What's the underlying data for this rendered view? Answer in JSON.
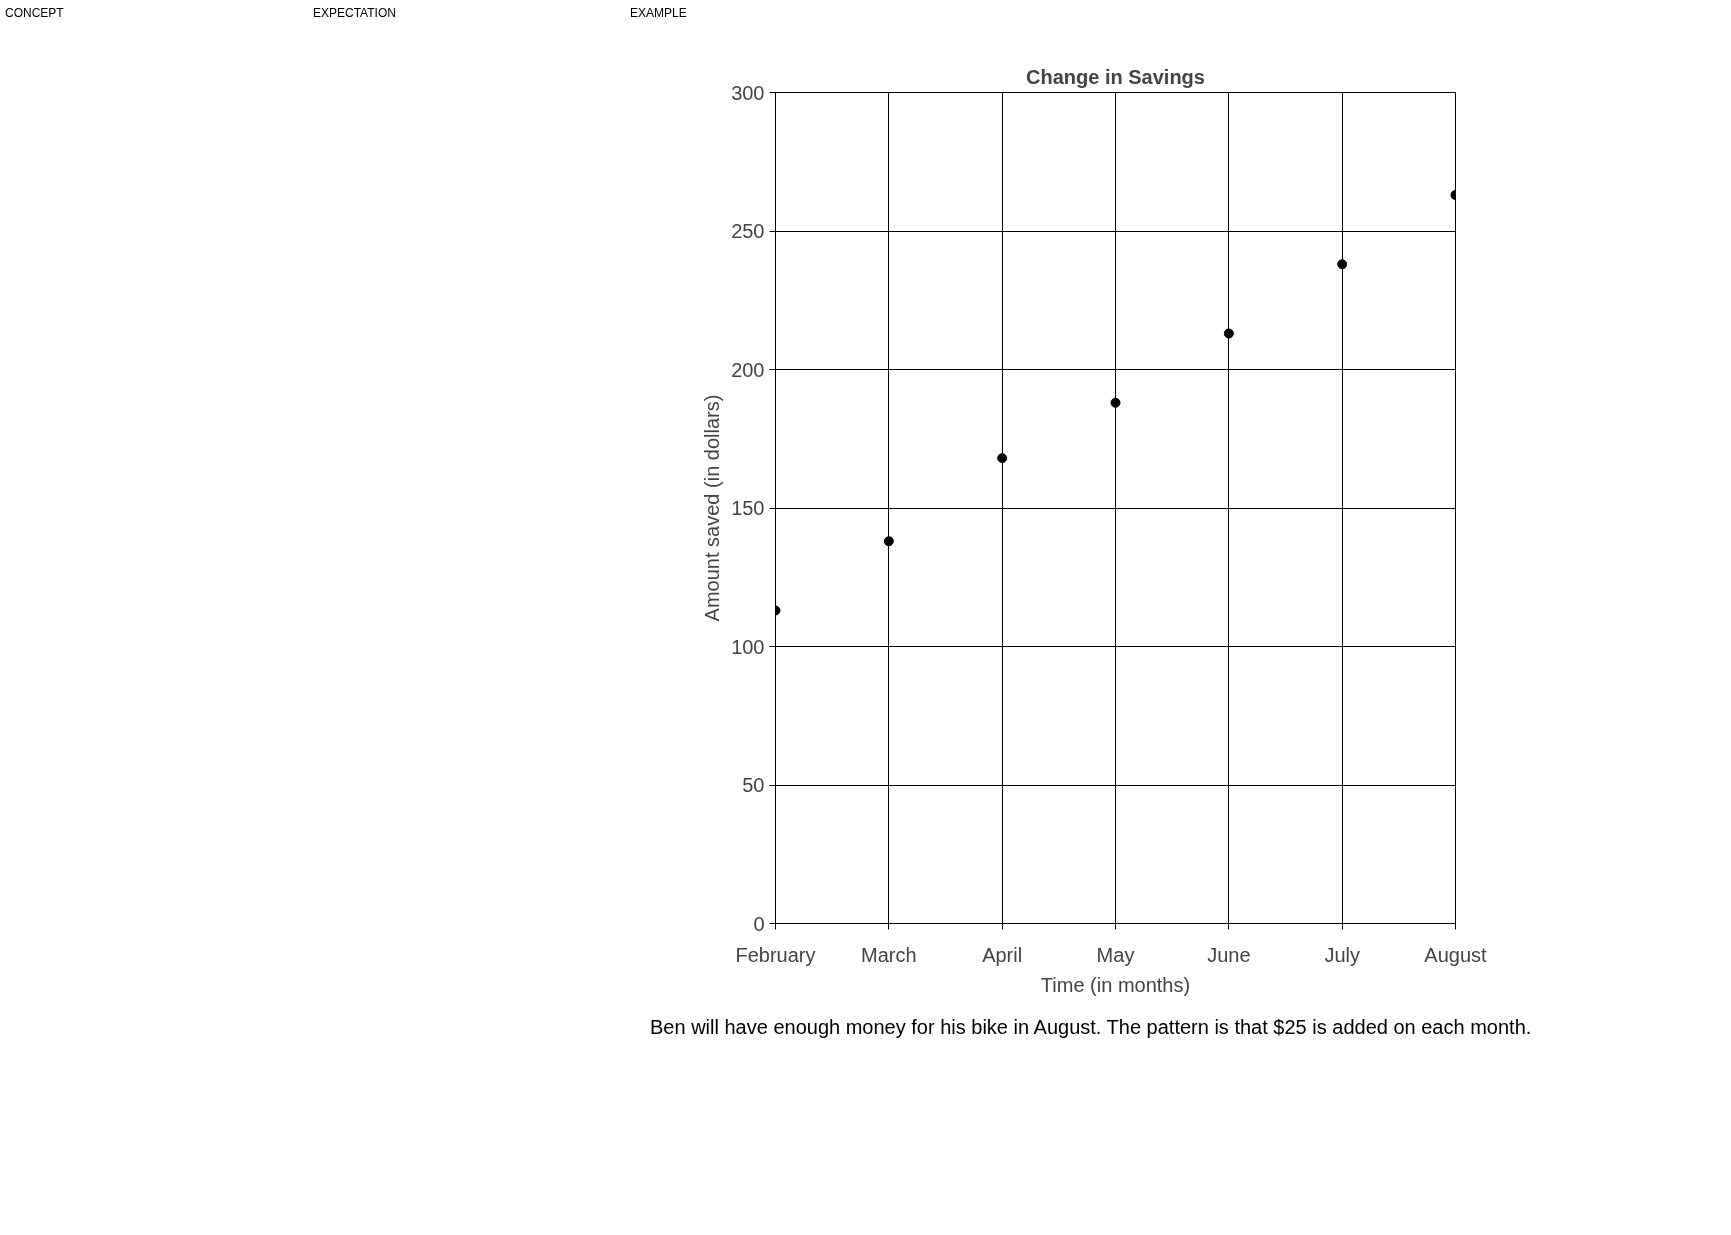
{
  "chart_data": {
    "type": "scatter",
    "title": "Change in Savings",
    "xlabel": "Time (in months)",
    "ylabel": "Amount saved (in dollars)",
    "categories": [
      "February",
      "March",
      "April",
      "May",
      "June",
      "July",
      "August"
    ],
    "values": [
      113,
      138,
      168,
      188,
      213,
      238,
      263
    ],
    "color": "#000000",
    "marker": "circle",
    "grid": true,
    "ylim": [
      0,
      300
    ],
    "yticks": [
      0,
      50,
      100,
      150,
      200,
      250,
      300
    ],
    "annotations": [
      "CONCEPT",
      "EXPECTATION",
      "EXAMPLE",
      "Ben will have enough money for his bike in August. The pattern is that $25 is added on each month."
    ]
  }
}
